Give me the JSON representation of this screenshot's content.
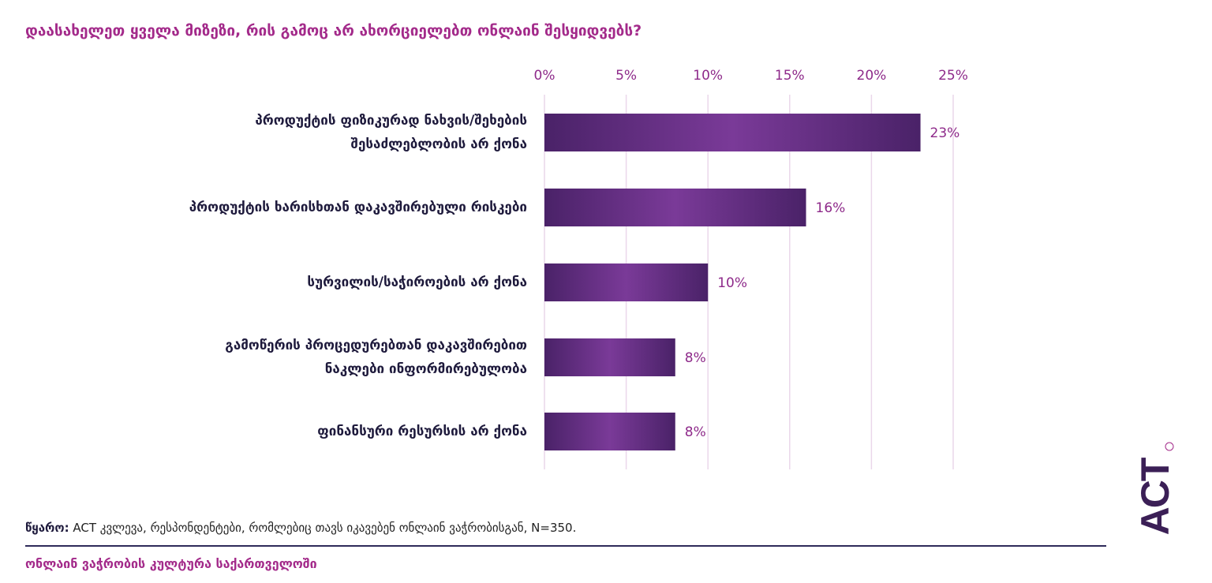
{
  "title": "დაასახელეთ ყველა მიზეზი, რის გამოც არ ახორციელებთ ონლაინ შესყიდვებს?",
  "chart_data": {
    "type": "bar",
    "orientation": "horizontal",
    "categories": [
      [
        "პროდუქტის ფიზიკურად ნახვის/შეხების",
        "შესაძლებლობის არ ქონა"
      ],
      [
        "პროდუქტის ხარისხთან დაკავშირებული რისკები"
      ],
      [
        "სურვილის/საჭიროების არ ქონა"
      ],
      [
        "გამოწერის პროცედურებთან დაკავშირებით",
        "ნაკლები ინფორმირებულობა"
      ],
      [
        "ფინანსური რესურსის არ ქონა"
      ]
    ],
    "values": [
      23,
      16,
      10,
      8,
      8
    ],
    "value_labels": [
      "23%",
      "16%",
      "10%",
      "8%",
      "8%"
    ],
    "xlim": [
      0,
      25
    ],
    "ticks": [
      0,
      5,
      10,
      15,
      20,
      25
    ],
    "tick_labels": [
      "0%",
      "5%",
      "10%",
      "15%",
      "20%",
      "25%"
    ],
    "x_axis_position": "top",
    "grid": true,
    "legend": "none"
  },
  "source": {
    "label": "წყარო:",
    "text": " ACT კვლევა, რესპონდენტები, რომლებიც თავს იკავებენ ონლაინ ვაჭრობისგან, N=350."
  },
  "footer_title": "ონლაინ ვაჭრობის კულტურა საქართველოში",
  "logo_text": "ACT",
  "colors": {
    "title": "#a32a8a",
    "bar_dark": "#4a2268",
    "bar_light": "#7a3a98",
    "grid": "#ead7ea",
    "tick_label": "#8e2a8a",
    "value_label": "#8e2a8a",
    "category_label": "#1e1a3c",
    "divider": "#2e2a5a",
    "logo": "#3b1f56"
  }
}
